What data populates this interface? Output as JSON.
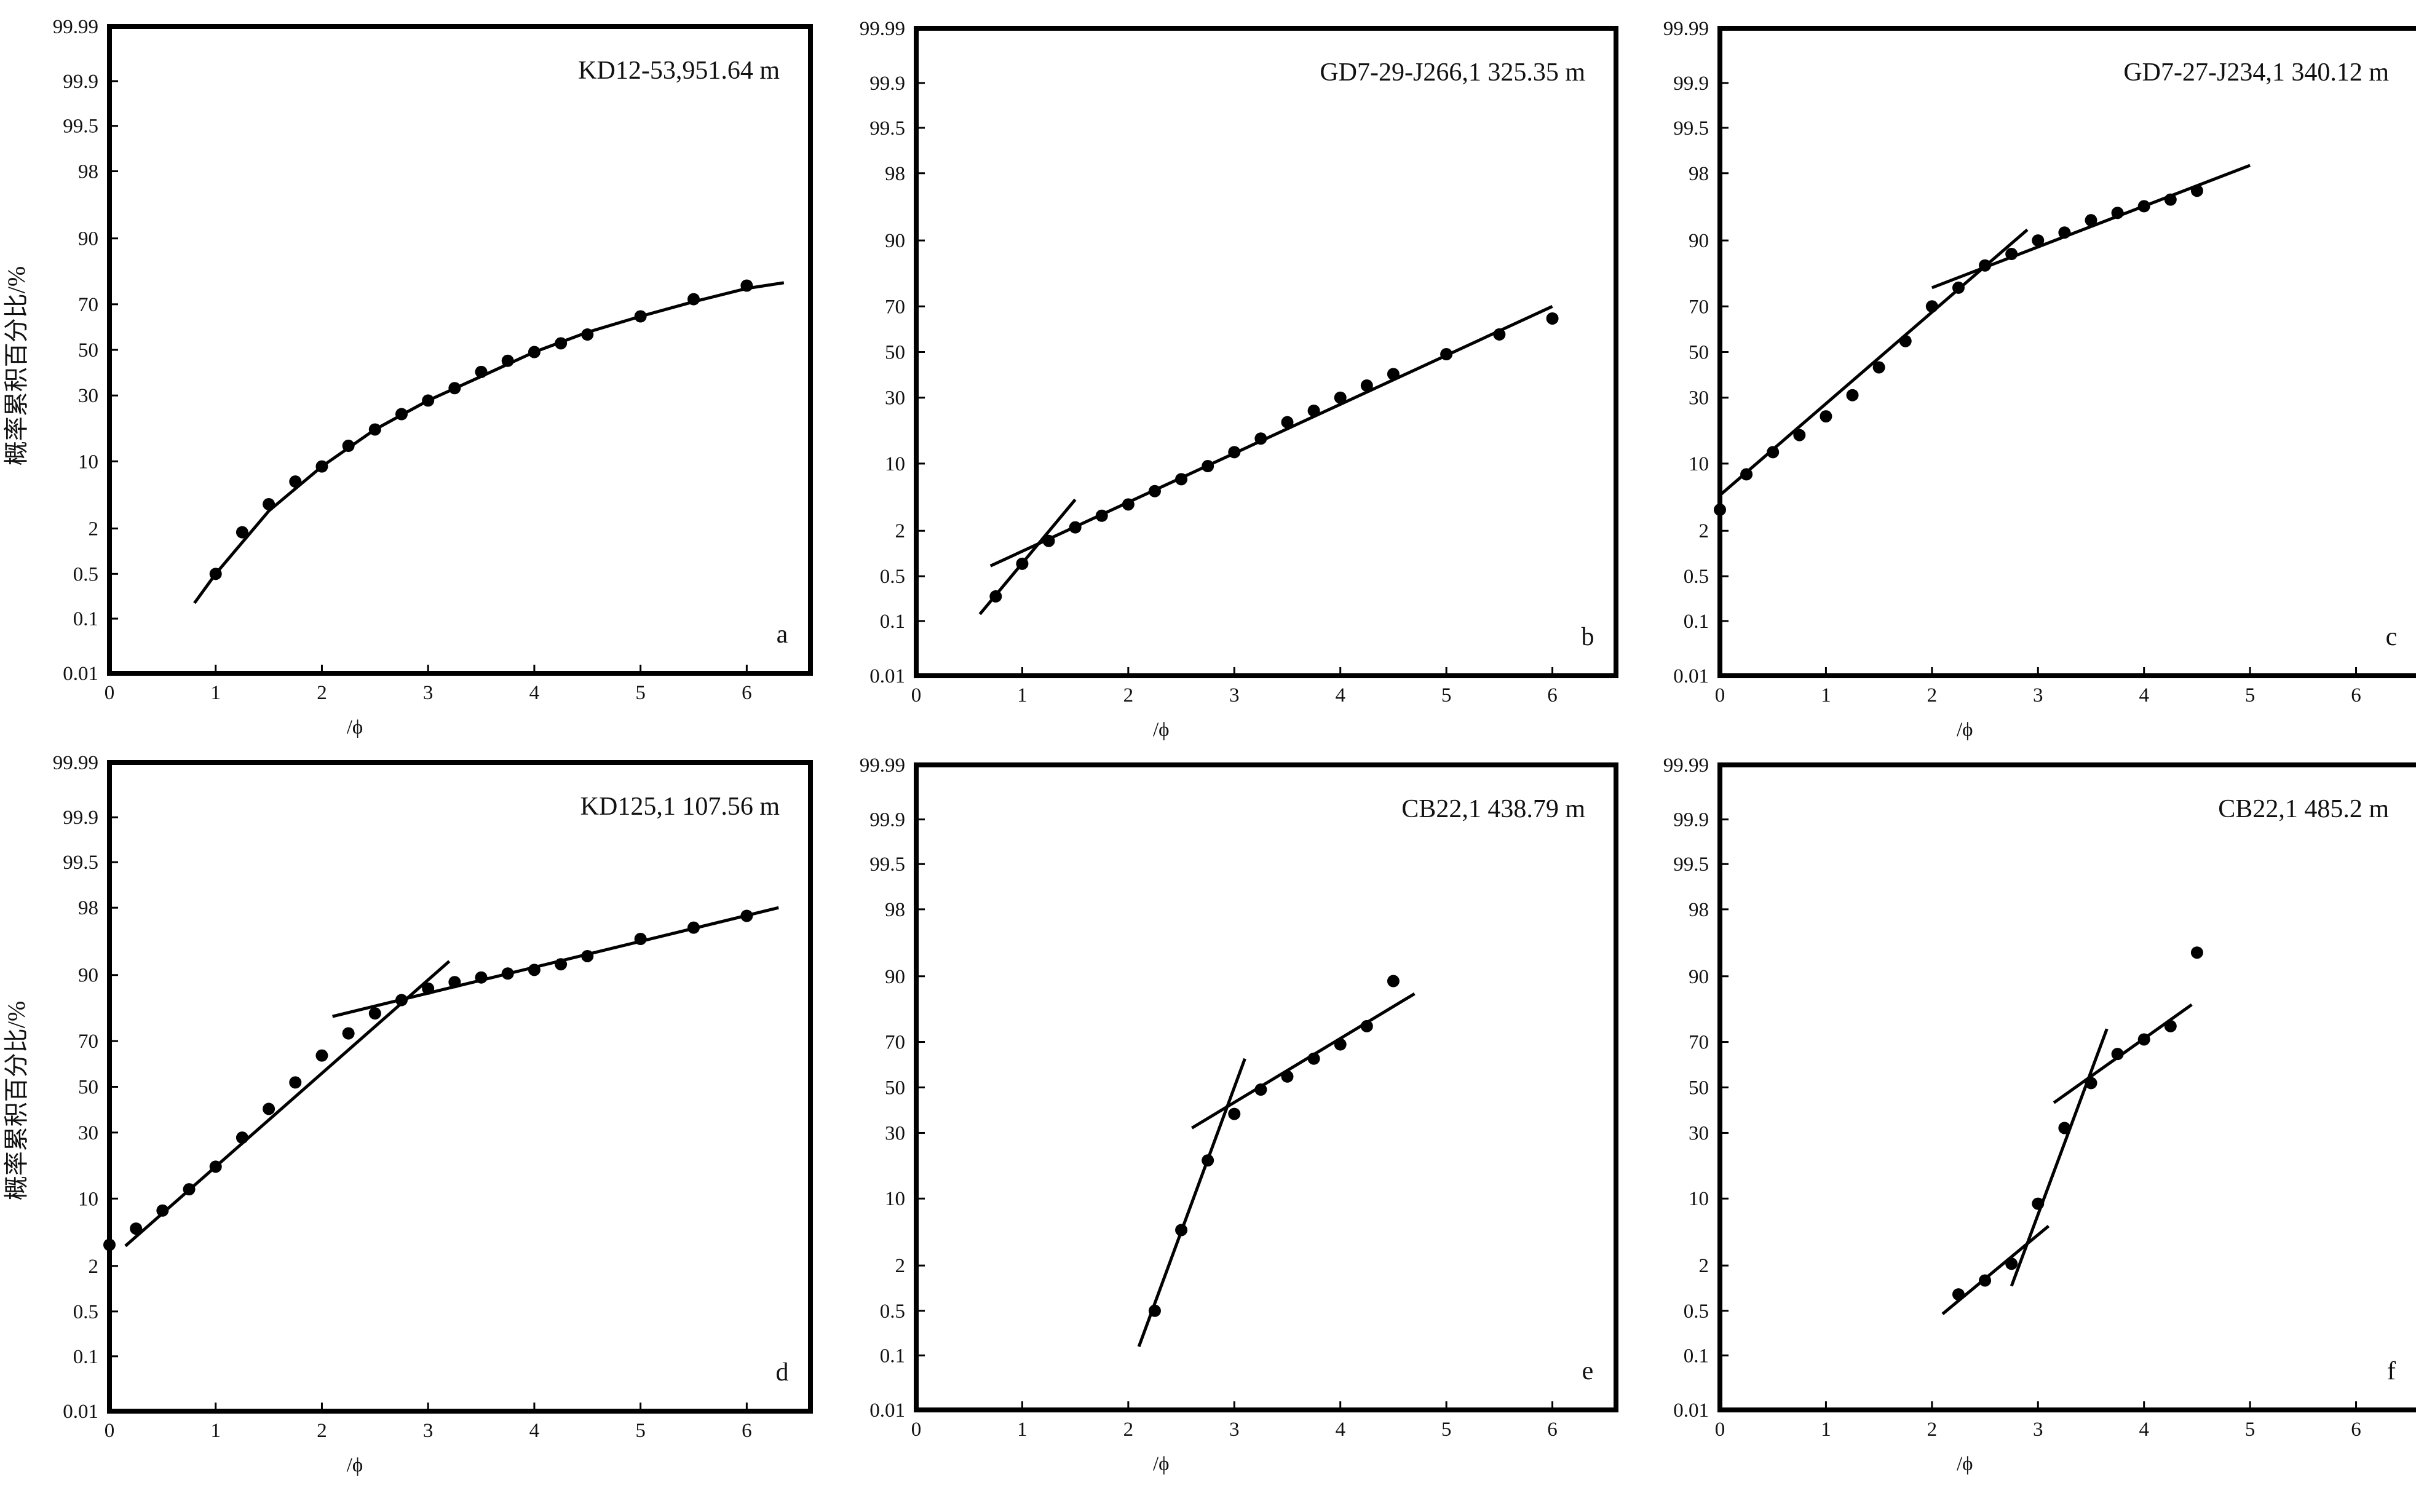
{
  "y_axis_label": "概率累积百分比/%",
  "chart_data": [
    {
      "type": "scatter",
      "title": "KD12-53,951.64 m",
      "panel_letter": "a",
      "xlabel": "/ϕ",
      "ylabel": "概率累积百分比/%",
      "xlim": [
        0,
        6.6
      ],
      "x_ticks": [
        "0",
        "1",
        "2",
        "3",
        "4",
        "5",
        "6"
      ],
      "y_scale": "probability",
      "y_ticks": [
        "0.01",
        "0.1",
        "0.5",
        "2",
        "10",
        "30",
        "50",
        "70",
        "90",
        "98",
        "99.5",
        "99.9",
        "99.99"
      ],
      "grid": false,
      "points": [
        [
          1.0,
          0.5
        ],
        [
          1.25,
          1.8
        ],
        [
          1.5,
          3.8
        ],
        [
          1.75,
          6.5
        ],
        [
          2.0,
          9.0
        ],
        [
          2.25,
          13.5
        ],
        [
          2.5,
          18
        ],
        [
          2.75,
          23
        ],
        [
          3.0,
          28
        ],
        [
          3.25,
          33
        ],
        [
          3.5,
          40
        ],
        [
          3.75,
          45
        ],
        [
          4.0,
          49
        ],
        [
          4.25,
          53
        ],
        [
          4.5,
          57
        ],
        [
          5.0,
          65
        ],
        [
          5.5,
          72
        ],
        [
          6.0,
          77
        ]
      ],
      "fit_lines": [
        {
          "points": [
            [
              0.8,
              0.18
            ],
            [
              1.0,
              0.5
            ],
            [
              1.5,
              3.2
            ],
            [
              2.0,
              9.0
            ],
            [
              2.5,
              18
            ],
            [
              3.0,
              28
            ],
            [
              3.5,
              38
            ],
            [
              4.0,
              49
            ],
            [
              4.5,
              58
            ],
            [
              5.0,
              65
            ],
            [
              5.5,
              71
            ],
            [
              6.0,
              76
            ],
            [
              6.35,
              78
            ]
          ]
        }
      ]
    },
    {
      "type": "scatter",
      "title": "GD7-29-J266,1 325.35 m",
      "panel_letter": "b",
      "xlabel": "/ϕ",
      "ylabel": "概率累积百分比/%",
      "xlim": [
        0,
        6.6
      ],
      "x_ticks": [
        "0",
        "1",
        "2",
        "3",
        "4",
        "5",
        "6"
      ],
      "y_scale": "probability",
      "y_ticks": [
        "0.01",
        "0.1",
        "0.5",
        "2",
        "10",
        "30",
        "50",
        "70",
        "90",
        "98",
        "99.5",
        "99.9",
        "99.99"
      ],
      "grid": false,
      "points": [
        [
          0.75,
          0.25
        ],
        [
          1.0,
          0.75
        ],
        [
          1.25,
          1.5
        ],
        [
          1.5,
          2.2
        ],
        [
          1.75,
          3.0
        ],
        [
          2.0,
          4.0
        ],
        [
          2.25,
          5.5
        ],
        [
          2.5,
          7.2
        ],
        [
          2.75,
          9.5
        ],
        [
          3.0,
          12.5
        ],
        [
          3.25,
          16
        ],
        [
          3.5,
          21
        ],
        [
          3.75,
          25
        ],
        [
          4.0,
          30
        ],
        [
          4.25,
          35
        ],
        [
          4.5,
          40
        ],
        [
          5.0,
          49
        ],
        [
          5.5,
          58
        ],
        [
          6.0,
          65
        ]
      ],
      "fit_lines": [
        {
          "points": [
            [
              0.6,
              0.13
            ],
            [
              1.5,
              4.5
            ]
          ]
        },
        {
          "points": [
            [
              0.7,
              0.7
            ],
            [
              6.0,
              70
            ]
          ]
        }
      ]
    },
    {
      "type": "scatter",
      "title": "GD7-27-J234,1 340.12 m",
      "panel_letter": "c",
      "xlabel": "/ϕ",
      "ylabel": "概率累积百分比/%",
      "xlim": [
        0,
        6.6
      ],
      "x_ticks": [
        "0",
        "1",
        "2",
        "3",
        "4",
        "5",
        "6"
      ],
      "y_scale": "probability",
      "y_ticks": [
        "0.01",
        "0.1",
        "0.5",
        "2",
        "10",
        "30",
        "50",
        "70",
        "90",
        "98",
        "99.5",
        "99.9",
        "99.99"
      ],
      "grid": false,
      "points": [
        [
          0.0,
          3.5
        ],
        [
          0.25,
          8
        ],
        [
          0.5,
          12.5
        ],
        [
          0.75,
          17
        ],
        [
          1.0,
          23
        ],
        [
          1.25,
          31
        ],
        [
          1.5,
          43
        ],
        [
          1.75,
          55
        ],
        [
          2.0,
          70
        ],
        [
          2.25,
          77
        ],
        [
          2.5,
          84
        ],
        [
          2.75,
          87
        ],
        [
          3.0,
          90
        ],
        [
          3.25,
          91.5
        ],
        [
          3.5,
          93.5
        ],
        [
          3.75,
          94.5
        ],
        [
          4.0,
          95.3
        ],
        [
          4.25,
          96
        ],
        [
          4.5,
          96.8
        ]
      ],
      "fit_lines": [
        {
          "points": [
            [
              0.0,
              5
            ],
            [
              2.9,
              92
            ]
          ]
        },
        {
          "points": [
            [
              2.0,
              77
            ],
            [
              5.0,
              98.4
            ]
          ]
        }
      ]
    },
    {
      "type": "scatter",
      "title": "KD125,1 107.56 m",
      "panel_letter": "d",
      "xlabel": "/ϕ",
      "ylabel": "概率累积百分比/%",
      "xlim": [
        0,
        6.6
      ],
      "x_ticks": [
        "0",
        "1",
        "2",
        "3",
        "4",
        "5",
        "6"
      ],
      "y_scale": "probability",
      "y_ticks": [
        "0.01",
        "0.1",
        "0.5",
        "2",
        "10",
        "30",
        "50",
        "70",
        "90",
        "98",
        "99.5",
        "99.9",
        "99.99"
      ],
      "grid": false,
      "points": [
        [
          0.0,
          3.5
        ],
        [
          0.25,
          5.2
        ],
        [
          0.5,
          7.8
        ],
        [
          0.75,
          12
        ],
        [
          1.0,
          18
        ],
        [
          1.25,
          28
        ],
        [
          1.5,
          40
        ],
        [
          1.75,
          52
        ],
        [
          2.0,
          64
        ],
        [
          2.25,
          73
        ],
        [
          2.5,
          80
        ],
        [
          2.75,
          84
        ],
        [
          3.0,
          87
        ],
        [
          3.25,
          88.5
        ],
        [
          3.5,
          89.5
        ],
        [
          3.75,
          90.3
        ],
        [
          4.0,
          91
        ],
        [
          4.25,
          92
        ],
        [
          4.5,
          93.3
        ],
        [
          5.0,
          95.5
        ],
        [
          5.5,
          96.6
        ],
        [
          6.0,
          97.5
        ]
      ],
      "fit_lines": [
        {
          "points": [
            [
              0.15,
              3.4
            ],
            [
              3.2,
              92.5
            ]
          ]
        },
        {
          "points": [
            [
              2.1,
              79
            ],
            [
              6.3,
              98
            ]
          ]
        }
      ]
    },
    {
      "type": "scatter",
      "title": "CB22,1 438.79 m",
      "panel_letter": "e",
      "xlabel": "/ϕ",
      "ylabel": "概率累积百分比/%",
      "xlim": [
        0,
        6.6
      ],
      "x_ticks": [
        "0",
        "1",
        "2",
        "3",
        "4",
        "5",
        "6"
      ],
      "y_scale": "probability",
      "y_ticks": [
        "0.01",
        "0.1",
        "0.5",
        "2",
        "10",
        "30",
        "50",
        "70",
        "90",
        "98",
        "99.5",
        "99.9",
        "99.99"
      ],
      "grid": false,
      "points": [
        [
          2.25,
          0.5
        ],
        [
          2.5,
          5.0
        ],
        [
          2.75,
          20
        ],
        [
          3.0,
          38
        ],
        [
          3.25,
          49
        ],
        [
          3.5,
          55
        ],
        [
          3.75,
          63
        ],
        [
          4.0,
          69
        ],
        [
          4.25,
          76
        ],
        [
          4.5,
          89
        ]
      ],
      "fit_lines": [
        {
          "points": [
            [
              2.1,
              0.14
            ],
            [
              3.1,
              63
            ]
          ]
        },
        {
          "points": [
            [
              2.6,
              32
            ],
            [
              4.7,
              86
            ]
          ]
        }
      ]
    },
    {
      "type": "scatter",
      "title": "CB22,1 485.2 m",
      "panel_letter": "f",
      "xlabel": "/ϕ",
      "ylabel": "概率累积百分比/%",
      "xlim": [
        0,
        6.6
      ],
      "x_ticks": [
        "0",
        "1",
        "2",
        "3",
        "4",
        "5",
        "6"
      ],
      "y_scale": "probability",
      "y_ticks": [
        "0.01",
        "0.1",
        "0.5",
        "2",
        "10",
        "30",
        "50",
        "70",
        "90",
        "98",
        "99.5",
        "99.9",
        "99.99"
      ],
      "grid": false,
      "points": [
        [
          2.25,
          0.85
        ],
        [
          2.5,
          1.3
        ],
        [
          2.75,
          2.1
        ],
        [
          3.0,
          9.0
        ],
        [
          3.25,
          32
        ],
        [
          3.5,
          52
        ],
        [
          3.75,
          65
        ],
        [
          4.0,
          71
        ],
        [
          4.25,
          76
        ],
        [
          4.5,
          94
        ]
      ],
      "fit_lines": [
        {
          "points": [
            [
              2.1,
              0.45
            ],
            [
              3.1,
              5.5
            ]
          ]
        },
        {
          "points": [
            [
              2.75,
              1.1
            ],
            [
              3.65,
              75
            ]
          ]
        },
        {
          "points": [
            [
              3.15,
              43
            ],
            [
              4.45,
              83
            ]
          ]
        }
      ]
    }
  ]
}
